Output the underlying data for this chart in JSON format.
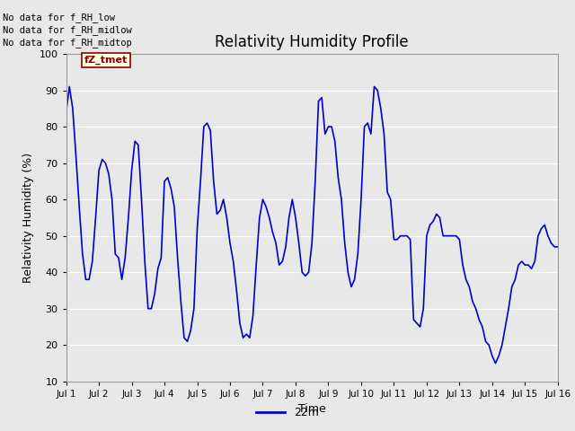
{
  "title": "Relativity Humidity Profile",
  "xlabel": "Time",
  "ylabel": "Relativity Humidity (%)",
  "ylim": [
    10,
    100
  ],
  "yticks": [
    10,
    20,
    30,
    40,
    50,
    60,
    70,
    80,
    90,
    100
  ],
  "xtick_labels": [
    "Jul 1",
    "Jul 2",
    "Jul 3",
    "Jul 4",
    "Jul 5",
    "Jul 6",
    "Jul 7",
    "Jul 8",
    "Jul 9",
    "Jul 10",
    "Jul 11",
    "Jul 12",
    "Jul 13",
    "Jul 14",
    "Jul 15",
    "Jul 16"
  ],
  "line_color": "#0000cc",
  "line_width": 1.2,
  "legend_label": "22m",
  "plot_bg_color": "#e8e8e8",
  "fig_bg_color": "#e8e8e8",
  "no_data_texts": [
    "No data for f_RH_low",
    "No data for f_RH_midlow",
    "No data for f_RH_midtop"
  ],
  "fz_tmet_text": "fZ_tmet",
  "x_days": [
    0.0,
    0.1,
    0.2,
    0.3,
    0.4,
    0.5,
    0.6,
    0.7,
    0.8,
    0.9,
    1.0,
    1.1,
    1.2,
    1.3,
    1.4,
    1.5,
    1.6,
    1.7,
    1.8,
    1.9,
    2.0,
    2.1,
    2.2,
    2.3,
    2.4,
    2.5,
    2.6,
    2.7,
    2.8,
    2.9,
    3.0,
    3.1,
    3.2,
    3.3,
    3.4,
    3.5,
    3.6,
    3.7,
    3.8,
    3.9,
    4.0,
    4.1,
    4.2,
    4.3,
    4.4,
    4.5,
    4.6,
    4.7,
    4.8,
    4.9,
    5.0,
    5.1,
    5.2,
    5.3,
    5.4,
    5.5,
    5.6,
    5.7,
    5.8,
    5.9,
    6.0,
    6.1,
    6.2,
    6.3,
    6.4,
    6.5,
    6.6,
    6.7,
    6.8,
    6.9,
    7.0,
    7.1,
    7.2,
    7.3,
    7.4,
    7.5,
    7.6,
    7.7,
    7.8,
    7.9,
    8.0,
    8.1,
    8.2,
    8.3,
    8.4,
    8.5,
    8.6,
    8.7,
    8.8,
    8.9,
    9.0,
    9.1,
    9.2,
    9.3,
    9.4,
    9.5,
    9.6,
    9.7,
    9.8,
    9.9,
    10.0,
    10.1,
    10.2,
    10.3,
    10.4,
    10.5,
    10.6,
    10.7,
    10.8,
    10.9,
    11.0,
    11.1,
    11.2,
    11.3,
    11.4,
    11.5,
    11.6,
    11.7,
    11.8,
    11.9,
    12.0,
    12.1,
    12.2,
    12.3,
    12.4,
    12.5,
    12.6,
    12.7,
    12.8,
    12.9,
    13.0,
    13.1,
    13.2,
    13.3,
    13.4,
    13.5,
    13.6,
    13.7,
    13.8,
    13.9,
    14.0,
    14.1,
    14.2,
    14.3,
    14.4,
    14.5,
    14.6,
    14.7,
    14.8,
    14.9,
    15.0
  ],
  "y_values": [
    84,
    91,
    85,
    72,
    58,
    45,
    38,
    38,
    43,
    55,
    68,
    71,
    70,
    67,
    60,
    45,
    44,
    38,
    44,
    55,
    68,
    76,
    75,
    60,
    43,
    30,
    30,
    34,
    41,
    44,
    65,
    66,
    63,
    58,
    44,
    32,
    22,
    21,
    24,
    30,
    52,
    65,
    80,
    81,
    79,
    65,
    56,
    57,
    60,
    55,
    48,
    43,
    35,
    26,
    22,
    23,
    22,
    28,
    42,
    55,
    60,
    58,
    55,
    51,
    48,
    42,
    43,
    47,
    55,
    60,
    55,
    48,
    40,
    39,
    40,
    48,
    65,
    87,
    88,
    78,
    80,
    80,
    76,
    66,
    60,
    48,
    40,
    36,
    38,
    45,
    60,
    80,
    81,
    78,
    91,
    90,
    85,
    78,
    62,
    60,
    49,
    49,
    50,
    50,
    50,
    49,
    27,
    26,
    25,
    30,
    50,
    53,
    54,
    56,
    55,
    50,
    50,
    50,
    50,
    50,
    49,
    42,
    38,
    36,
    32,
    30,
    27,
    25,
    21,
    20,
    17,
    15,
    17,
    20,
    25,
    30,
    36,
    38,
    42,
    43,
    42,
    42,
    41,
    43,
    50,
    52,
    53,
    50,
    48,
    47,
    47
  ]
}
